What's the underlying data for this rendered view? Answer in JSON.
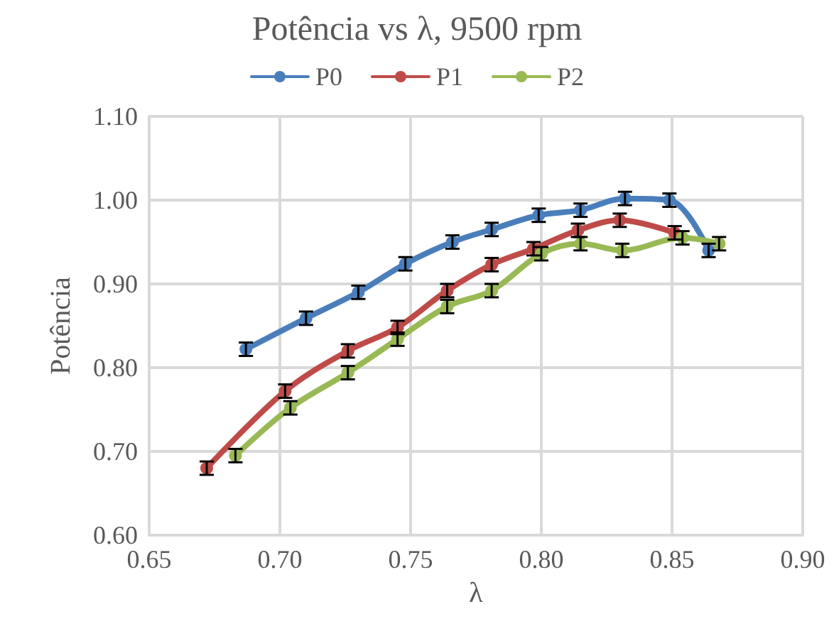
{
  "chart_data": {
    "type": "line",
    "title": "Potência vs λ, 9500 rpm",
    "xlabel": "λ",
    "ylabel": "Potência",
    "xlim": [
      0.65,
      0.9
    ],
    "xticks": [
      0.65,
      {
        "value": 0.7,
        "label": "0.70"
      },
      0.75,
      {
        "value": 0.8,
        "label": "0.80"
      },
      0.85,
      {
        "value": 0.9,
        "label": "0.90"
      }
    ],
    "ylim": [
      0.6,
      1.1
    ],
    "yticks": [
      {
        "value": 0.6,
        "label": "0.60"
      },
      {
        "value": 0.7,
        "label": "0.70"
      },
      {
        "value": 0.8,
        "label": "0.80"
      },
      {
        "value": 0.9,
        "label": "0.90"
      },
      {
        "value": 1.0,
        "label": "1.00"
      },
      {
        "value": 1.1,
        "label": "1.10"
      }
    ],
    "grid": true,
    "legend": "top",
    "marker": "circle",
    "line_style": "solid",
    "series": [
      {
        "name": "P0",
        "color": "#4a7ebb",
        "x": [
          0.687,
          0.71,
          0.73,
          0.748,
          0.766,
          0.781,
          0.799,
          0.815,
          0.832,
          0.849,
          0.864
        ],
        "values": [
          0.822,
          0.859,
          0.89,
          0.924,
          0.95,
          0.965,
          0.982,
          0.988,
          1.002,
          1.0,
          0.94
        ],
        "errors": [
          0.008,
          0.008,
          0.008,
          0.008,
          0.008,
          0.008,
          0.008,
          0.008,
          0.008,
          0.008,
          0.008
        ]
      },
      {
        "name": "P1",
        "color": "#be4b48",
        "x": [
          0.672,
          0.702,
          0.726,
          0.745,
          0.764,
          0.781,
          0.797,
          0.814,
          0.83,
          0.851
        ],
        "values": [
          0.68,
          0.772,
          0.82,
          0.848,
          0.892,
          0.923,
          0.942,
          0.964,
          0.976,
          0.961
        ],
        "errors": [
          0.008,
          0.008,
          0.008,
          0.008,
          0.008,
          0.008,
          0.008,
          0.008,
          0.008,
          0.008
        ]
      },
      {
        "name": "P2",
        "color": "#98b954",
        "x": [
          0.683,
          0.704,
          0.726,
          0.745,
          0.764,
          0.781,
          0.8,
          0.815,
          0.831,
          0.854,
          0.868
        ],
        "values": [
          0.695,
          0.752,
          0.794,
          0.834,
          0.873,
          0.892,
          0.936,
          0.948,
          0.94,
          0.955,
          0.948
        ],
        "errors": [
          0.008,
          0.008,
          0.008,
          0.008,
          0.008,
          0.008,
          0.008,
          0.008,
          0.008,
          0.008,
          0.008
        ]
      }
    ]
  }
}
